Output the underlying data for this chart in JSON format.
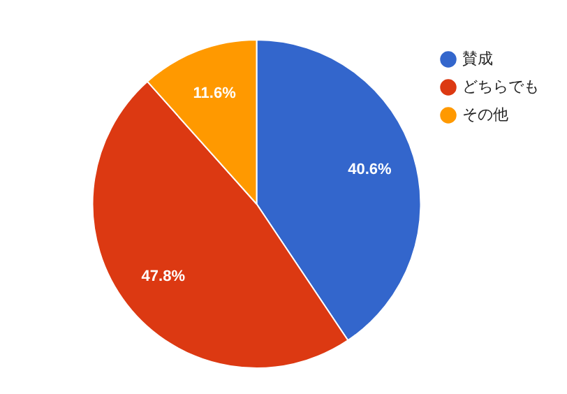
{
  "chart_data": {
    "type": "pie",
    "categories": [
      "賛成",
      "どちらでも",
      "その他"
    ],
    "values": [
      40.6,
      47.8,
      11.6
    ],
    "colors": [
      "#3366cc",
      "#dc3912",
      "#ff9900"
    ],
    "value_labels": [
      "40.6%",
      "47.8%",
      "11.6%"
    ],
    "legend": "top right"
  }
}
